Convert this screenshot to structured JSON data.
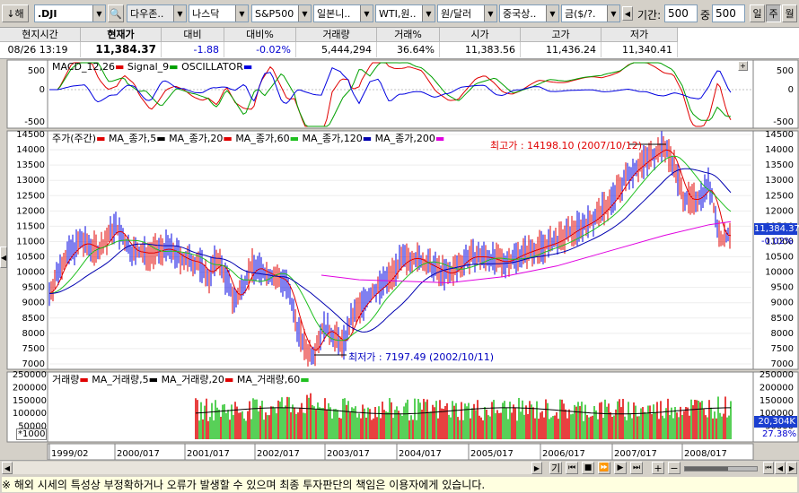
{
  "toolbar": {
    "symbol": ".DJI",
    "code_label": "해",
    "dropdowns": [
      "다우존..",
      "나스닥",
      "S&P500",
      "일본니..",
      "WTI,원..",
      "원/달러",
      "중국상..",
      "금($/?."
    ],
    "period_label": "기간:",
    "period_value": "500",
    "count_label": "중",
    "count_value": "500",
    "day_label": "일",
    "week_label": "주",
    "month_label": "월"
  },
  "quote": {
    "headers": [
      "현지시간",
      "현재가",
      "대비",
      "대비%",
      "거래량",
      "거래%",
      "시가",
      "고가",
      "저가"
    ],
    "values": [
      "08/26  13:19",
      "11,384.37",
      "-1.88",
      "-0.02%",
      "5,444,294",
      "36.64%",
      "11,383.56",
      "11,436.24",
      "11,340.41"
    ]
  },
  "macd": {
    "legend": [
      "MACD_12,26",
      "Signal_9",
      "OSCILLATOR"
    ],
    "yticks": [
      "500",
      "0",
      "-500"
    ]
  },
  "price": {
    "legend": [
      "주가(주간)",
      "MA_종가,5",
      "MA_종가,20",
      "MA_종가,60",
      "MA_종가,120",
      "MA_종가,200"
    ],
    "yticks": [
      "14500",
      "14000",
      "13500",
      "13000",
      "12500",
      "12000",
      "11500",
      "11000",
      "10500",
      "10000",
      "9500",
      "9000",
      "8500",
      "8000",
      "7500",
      "7000"
    ],
    "high_annotation": "최고가 : 14198.10 (2007/10/12)",
    "low_annotation": "최저가 : 7197.49 (2002/10/11)",
    "current_value": "11,384.37",
    "current_change": "-0.02%"
  },
  "volume": {
    "legend": [
      "거래량",
      "MA_거래량,5",
      "MA_거래량,20",
      "MA_거래량,60"
    ],
    "yticks": [
      "250000",
      "200000",
      "150000",
      "100000",
      "50000"
    ],
    "unit": "*1000",
    "current_value": "20,304K",
    "current_ratio": "27.38%"
  },
  "xaxis": [
    "1999/02",
    "2000/017",
    "2001/017",
    "2002/017",
    "2003/017",
    "2004/017",
    "2005/017",
    "2006/017",
    "2007/017",
    "2008/017"
  ],
  "nav": {
    "zoom_label": "기"
  },
  "notice": "※ 해외 시세의 특성상 부정확하거나 오류가 발생할 수 있으며 최종 투자판단의 책임은 이용자에게 있습니다.",
  "chart_data": {
    "type": "line",
    "title": "",
    "series": [
      {
        "name": "주가(주간)",
        "x": [
          "1999",
          "2000",
          "2000.5",
          "2001",
          "2001.7",
          "2002",
          "2002.5",
          "2002.8",
          "2003.2",
          "2003.7",
          "2004",
          "2004.5",
          "2005",
          "2005.5",
          "2006",
          "2006.5",
          "2007",
          "2007.5",
          "2007.8",
          "2008",
          "2008.3",
          "2008.5",
          "2008.65"
        ],
        "values": [
          9300,
          11500,
          10700,
          10700,
          8700,
          10100,
          9000,
          7300,
          8000,
          9600,
          10500,
          10200,
          10700,
          10400,
          10800,
          11200,
          12500,
          13800,
          14100,
          12800,
          12600,
          11200,
          11384
        ]
      }
    ],
    "ylim": [
      7000,
      14500
    ],
    "ylabel": "",
    "xlabel": ""
  }
}
